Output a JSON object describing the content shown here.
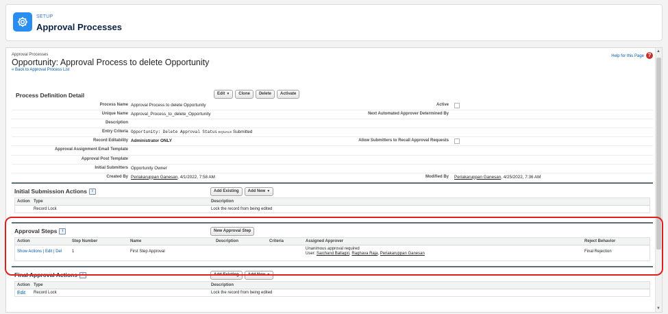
{
  "setup_header": {
    "crumb": "SETUP",
    "title": "Approval Processes",
    "icon": "gear-icon"
  },
  "page": {
    "type": "Approval Processes",
    "heading": "Opportunity: Approval Process to delete Opportunity",
    "back_link": "« Back to Approval Process List",
    "help_link": "Help for this Page",
    "help_icon": "?"
  },
  "process_definition": {
    "title": "Process Definition Detail",
    "buttons": {
      "edit": "Edit",
      "clone": "Clone",
      "delete": "Delete",
      "activate": "Activate"
    },
    "fields": {
      "process_name": {
        "label": "Process Name",
        "value": "Approval Process to delete Opportunity"
      },
      "unique_name": {
        "label": "Unique Name",
        "value": "Approval_Process_to_delete_Opportunity"
      },
      "description": {
        "label": "Description",
        "value": ""
      },
      "entry_criteria": {
        "label": "Entry Criteria",
        "field": "Opportunity: Delete Approval Status",
        "operator": "EQUALS",
        "value": "Submitted"
      },
      "record_editability": {
        "label": "Record Editability",
        "value": "Administrator ONLY"
      },
      "email_template": {
        "label": "Approval Assignment Email Template",
        "value": ""
      },
      "post_template": {
        "label": "Approval Post Template",
        "value": ""
      },
      "initial_submitters": {
        "label": "Initial Submitters",
        "value": "Opportunity Owner"
      },
      "created_by": {
        "label": "Created By",
        "user": "Periakaruppan Ganesan",
        "date": ", 4/1/2022, 7:58 AM"
      },
      "active": {
        "label": "Active",
        "checked": false
      },
      "next_approver": {
        "label": "Next Automated Approver Determined By",
        "value": ""
      },
      "allow_recall": {
        "label": "Allow Submitters to Recall Approval Requests",
        "checked": false
      },
      "modified_by": {
        "label": "Modified By",
        "user": "Periakaruppan Ganesan",
        "date": ", 4/25/2022, 7:36 AM"
      }
    }
  },
  "initial_submission_actions": {
    "title": "Initial Submission Actions",
    "info_icon": "i",
    "buttons": {
      "add_existing": "Add Existing",
      "add_new": "Add New"
    },
    "columns": [
      "Action",
      "Type",
      "Description"
    ],
    "rows": [
      {
        "action": "",
        "type": "Record Lock",
        "description": "Lock the record from being edited"
      }
    ]
  },
  "approval_steps": {
    "title": "Approval Steps",
    "info_icon": "i",
    "buttons": {
      "new_step": "New Approval Step"
    },
    "columns": [
      "Action",
      "Step Number",
      "Name",
      "Description",
      "Criteria",
      "Assigned Approver",
      "Reject Behavior"
    ],
    "rows": [
      {
        "actions": {
          "show": "Show Actions",
          "sep1": " | ",
          "edit": "Edit",
          "sep2": " | ",
          "del": "Del"
        },
        "step_number": "1",
        "name": "First Step Approval",
        "description": "",
        "criteria": "",
        "approver_line1": "Unanimous approval required",
        "approver_prefix": "User: ",
        "approvers": [
          "Saichand Ballagiri",
          "Raghava Raja",
          "Periakaruppan Ganesan"
        ],
        "sep": ", ",
        "reject_behavior": "Final Rejection"
      }
    ]
  },
  "final_approval_actions": {
    "title": "Final Approval Actions",
    "info_icon": "i",
    "buttons": {
      "add_existing": "Add Existing",
      "add_new": "Add New"
    },
    "columns": [
      "Action",
      "Type",
      "Description"
    ],
    "rows": [
      {
        "action": "Edit",
        "type": "Record Lock",
        "description": "Lock the record from being edited"
      }
    ]
  },
  "colors": {
    "link": "#015ba7",
    "highlight": "#e01e1e",
    "setup_icon": "#2a8ef0",
    "title": "#0b2346"
  }
}
